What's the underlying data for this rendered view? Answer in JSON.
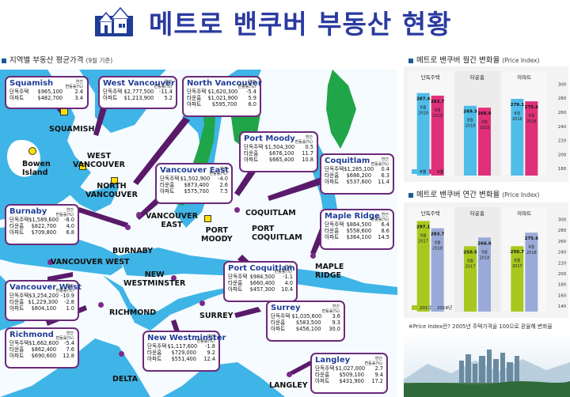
{
  "header": {
    "title": "메트로 밴쿠버 부동산 현황"
  },
  "sections": {
    "price_label": "지역별 부동산 평균가격",
    "price_sub": "(9월 기준)",
    "monthly_label": "메트로 밴쿠버 월간 변화율",
    "monthly_sub": "(Price Index)",
    "yearly_label": "메트로 밴쿠버 연간 변화율",
    "yearly_sub": "(Price Index)"
  },
  "unit_label": "연간\n변동률(%)",
  "regions": [
    {
      "name": "Squamish",
      "rows": [
        [
          "단독주택",
          "$965,100",
          "2.4"
        ],
        [
          "아파트",
          "$482,700",
          "3.4"
        ]
      ]
    },
    {
      "name": "West Vancouver",
      "rows": [
        [
          "단독주택",
          "$2,777,500",
          "-11.4"
        ],
        [
          "아파트",
          "$1,213,900",
          "5.2"
        ]
      ]
    },
    {
      "name": "North Vancouver",
      "rows": [
        [
          "단독주택",
          "$1,620,300",
          "-5.4"
        ],
        [
          "타운홈",
          "$1,021,900",
          "5.9"
        ],
        [
          "아파트",
          "$595,700",
          "6.0"
        ]
      ]
    },
    {
      "name": "Port Moody",
      "rows": [
        [
          "단독주택",
          "$1,504,300",
          "0.5"
        ],
        [
          "타운홈",
          "$676,100",
          "11.7"
        ],
        [
          "아파트",
          "$665,400",
          "10.8"
        ]
      ]
    },
    {
      "name": "Coquitlam",
      "rows": [
        [
          "단독주택",
          "$1,285,100",
          "0.4"
        ],
        [
          "타운홈",
          "$686,200",
          "6.3"
        ],
        [
          "아파트",
          "$537,600",
          "11.4"
        ]
      ]
    },
    {
      "name": "Vancouver East",
      "rows": [
        [
          "단독주택",
          "$1,502,900",
          "-4.0"
        ],
        [
          "타운홈",
          "$873,400",
          "2.6"
        ],
        [
          "아파트",
          "$575,700",
          "7.5"
        ]
      ]
    },
    {
      "name": "Burnaby",
      "rows": [
        [
          "단독주택",
          "$1,589,600",
          "-8.0"
        ],
        [
          "타운홈",
          "$822,700",
          "4.0"
        ],
        [
          "아파트",
          "$709,800",
          "6.8"
        ]
      ]
    },
    {
      "name": "Maple Ridge",
      "rows": [
        [
          "단독주택",
          "$864,500",
          "6.4"
        ],
        [
          "타운홈",
          "$558,600",
          "8.6"
        ],
        [
          "아파트",
          "$364,100",
          "14.5"
        ]
      ]
    },
    {
      "name": "Port Coquitlam",
      "rows": [
        [
          "단독주택",
          "$984,500",
          "-1.1"
        ],
        [
          "타운홈",
          "$660,400",
          "4.0"
        ],
        [
          "아파트",
          "$457,300",
          "10.4"
        ]
      ]
    },
    {
      "name": "Vancouver West",
      "rows": [
        [
          "단독주택",
          "$3,254,200",
          "-10.9"
        ],
        [
          "타운홈",
          "$1,229,300",
          "-2.8"
        ],
        [
          "아파트",
          "$804,100",
          "1.0"
        ]
      ]
    },
    {
      "name": "Surrey",
      "rows": [
        [
          "단독주택",
          "$1,035,600",
          "3.6"
        ],
        [
          "타운홈",
          "$583,500",
          "9.3"
        ],
        [
          "아파트",
          "$456,100",
          "30.0"
        ]
      ]
    },
    {
      "name": "Richmond",
      "rows": [
        [
          "단독주택",
          "$1,662,600",
          "-5.4"
        ],
        [
          "타운홈",
          "$862,400",
          "7.6"
        ],
        [
          "아파트",
          "$690,600",
          "12.8"
        ]
      ]
    },
    {
      "name": "New Westminster",
      "rows": [
        [
          "단독주택",
          "$1,117,600",
          "-1.8"
        ],
        [
          "타운홈",
          "$729,000",
          "9.2"
        ],
        [
          "아파트",
          "$551,400",
          "12.4"
        ]
      ]
    },
    {
      "name": "Langley",
      "rows": [
        [
          "단독주택",
          "$1,027,000",
          "2.7"
        ],
        [
          "타운홈",
          "$509,100",
          "9.4"
        ],
        [
          "아파트",
          "$431,900",
          "17.2"
        ]
      ]
    }
  ],
  "map_labels": {
    "squamish": "SQUAMISH",
    "bowen": "Bowen\nIsland",
    "west_van": "WEST\nVANCOUVER",
    "north_van": "NORTH\nVANCOUVER",
    "van_east": "VANCOUVER\nEAST",
    "port_moody": "PORT\nMOODY",
    "coquitlam": "COQUITLAM",
    "port_coq": "PORT\nCOQUITLAM",
    "burnaby": "BURNABY",
    "van_west": "VANCOUVER WEST",
    "new_west": "NEW\nWESTMINSTER",
    "maple_ridge": "MAPLE\nRIDGE",
    "richmond": "RICHMOND",
    "surrey": "SURREY",
    "delta": "DELTA",
    "langley": "LANGLEY"
  },
  "chart_data": [
    {
      "type": "bar",
      "title": "메트로 밴쿠버 월간 변화율 (Price Index)",
      "categories": [
        "단독주택",
        "타운홈",
        "아파트"
      ],
      "series": [
        {
          "name": "8월",
          "values": [
            287.4,
            269.3,
            279.1
          ],
          "labels": [
            "8월\n2018",
            "8월\n2018",
            "8월\n2018"
          ],
          "color": "#4fbde8"
        },
        {
          "name": "9월",
          "values": [
            283.7,
            266.6,
            275.6
          ],
          "labels": [
            "9월\n2018",
            "9월\n2018",
            "9월\n2018"
          ],
          "color": "#e0307a"
        }
      ],
      "yticks": [
        180,
        200,
        220,
        240,
        260,
        280,
        300
      ],
      "ylim": [
        170,
        305
      ]
    },
    {
      "type": "bar",
      "title": "메트로 밴쿠버 연간 변화율 (Price Index)",
      "categories": [
        "단독주택",
        "타운홈",
        "아파트"
      ],
      "series": [
        {
          "name": "2017년",
          "values": [
            297.1,
            250.5,
            250.7
          ],
          "labels": [
            "9월\n2017",
            "9월\n2017",
            "9월\n2017"
          ],
          "color": "#a8c820"
        },
        {
          "name": "2018년",
          "values": [
            283.7,
            266.6,
            275.6
          ],
          "labels": [
            "9월\n2018",
            "9월\n2018",
            "9월\n2018"
          ],
          "color": "#9aaad8"
        }
      ],
      "yticks": [
        140,
        160,
        180,
        200,
        220,
        240,
        260,
        280,
        300
      ],
      "ylim": [
        130,
        305
      ]
    }
  ],
  "footnote": "※Price Index란? 2005년 주택가격을 100으로 환율해 변화율"
}
